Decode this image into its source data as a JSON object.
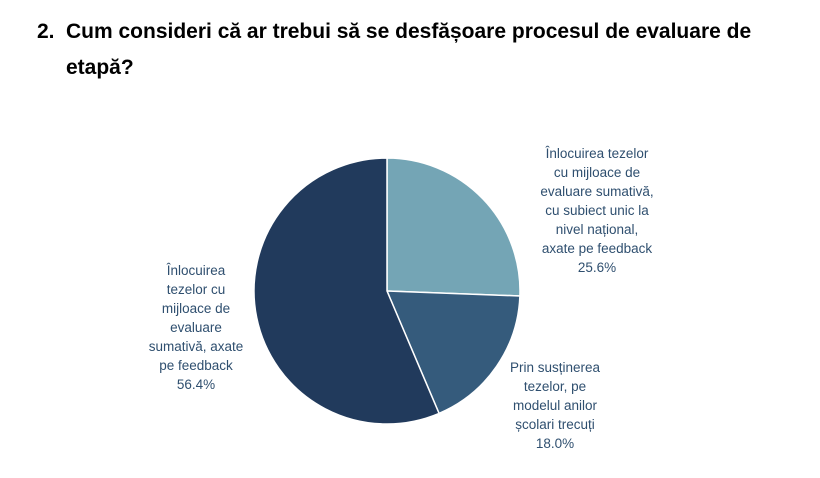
{
  "question": {
    "number": "2.",
    "line1": "Cum consideri că ar trebui să se desfășoare procesul de evaluare de",
    "line2": "etapă?"
  },
  "chart_data": {
    "type": "pie",
    "title": "",
    "slices": [
      {
        "label_lines": [
          "Înlocuirea tezelor",
          "cu mijloace de",
          "evaluare sumativă,",
          "cu subiect unic la",
          "nivel național,",
          "axate pe feedback"
        ],
        "value": 25.6,
        "value_label": "25.6%",
        "color": "#74a5b5"
      },
      {
        "label_lines": [
          "Prin susținerea",
          "tezelor, pe",
          "modelul anilor",
          "școlari trecuți"
        ],
        "value": 18.0,
        "value_label": "18.0%",
        "color": "#355b7c"
      },
      {
        "label_lines": [
          "Înlocuirea",
          "tezelor cu",
          "mijloace de",
          "evaluare",
          "sumativă, axate",
          "pe feedback"
        ],
        "value": 56.4,
        "value_label": "56.4%",
        "color": "#213a5c"
      }
    ],
    "start_angle_deg": 0,
    "direction": "clockwise",
    "legend": "none",
    "label_color": "#2f4f6f"
  }
}
